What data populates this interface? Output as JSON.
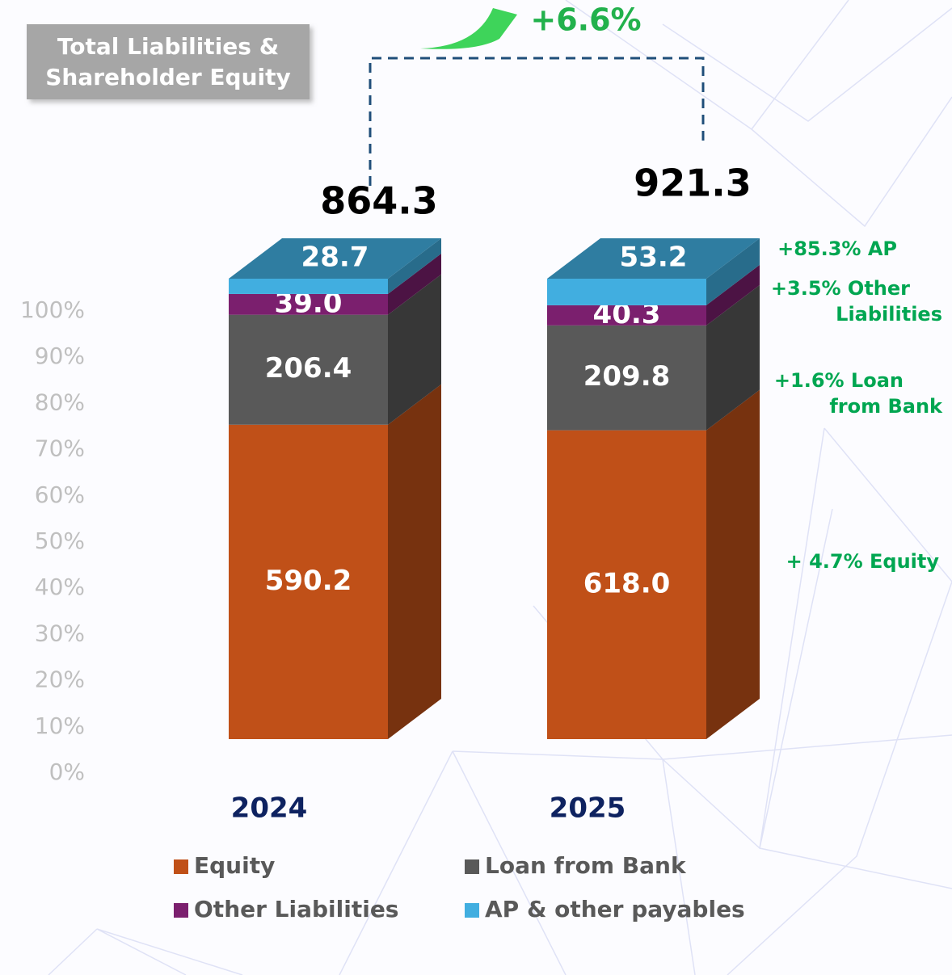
{
  "chart_data": {
    "type": "stacked_bar_3d",
    "title_lines": [
      "Total Liabilities &",
      "Shareholder Equity"
    ],
    "growth_label": "+6.6%",
    "categories": [
      "2024",
      "2025"
    ],
    "totals": [
      864.3,
      921.3
    ],
    "series": [
      {
        "name": "Equity",
        "color": "#c05018",
        "values": [
          590.2,
          618.0
        ],
        "value_labels": [
          "590.2",
          "618.0"
        ]
      },
      {
        "name": "Loan from Bank",
        "color": "#595959",
        "values": [
          206.4,
          209.8
        ],
        "value_labels": [
          "206.4",
          "209.8"
        ]
      },
      {
        "name": "Other Liabilities",
        "color": "#7b1f6e",
        "values": [
          39.0,
          40.3
        ],
        "value_labels": [
          "39.0",
          "40.3"
        ]
      },
      {
        "name": "AP & other payables",
        "color": "#41aee0",
        "values": [
          28.7,
          53.2
        ],
        "value_labels": [
          "28.7",
          "53.2"
        ]
      }
    ],
    "ylim": [
      0,
      100
    ],
    "yticks": [
      {
        "value": 0,
        "label": "0%"
      },
      {
        "value": 10,
        "label": "10%"
      },
      {
        "value": 20,
        "label": "20%"
      },
      {
        "value": 30,
        "label": "30%"
      },
      {
        "value": 40,
        "label": "40%"
      },
      {
        "value": 50,
        "label": "50%"
      },
      {
        "value": 60,
        "label": "60%"
      },
      {
        "value": 70,
        "label": "70%"
      },
      {
        "value": 80,
        "label": "80%"
      },
      {
        "value": 90,
        "label": "90%"
      },
      {
        "value": 100,
        "label": "100%"
      }
    ],
    "annotations": [
      {
        "lines": [
          "+85.3% AP"
        ]
      },
      {
        "lines": [
          "+3.5% Other",
          "Liabilities"
        ]
      },
      {
        "lines": [
          "+1.6% Loan",
          "from Bank"
        ]
      },
      {
        "lines": [
          "+ 4.7% Equity"
        ]
      }
    ],
    "legend": "bottom"
  }
}
